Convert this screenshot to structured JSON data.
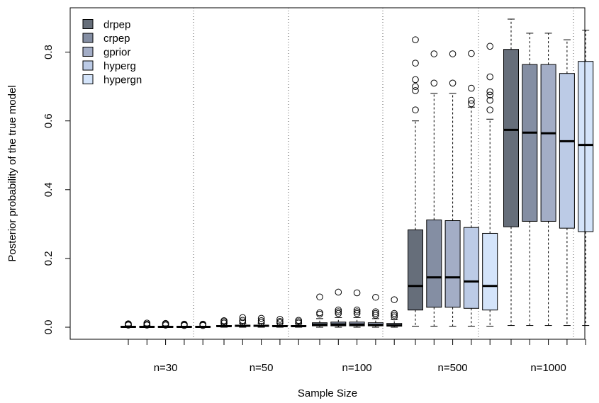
{
  "chart_data": {
    "type": "box",
    "xlabel": "Sample Size",
    "ylabel": "Posterior probability of the true model",
    "ylim": [
      0,
      0.9
    ],
    "yticks": [
      "0.0",
      "0.2",
      "0.4",
      "0.6",
      "0.8"
    ],
    "ytick_values": [
      0,
      0.2,
      0.4,
      0.6,
      0.8
    ],
    "groups": [
      "n=30",
      "n=50",
      "n=100",
      "n=500",
      "n=1000"
    ],
    "legend_position": "top-left",
    "series": [
      {
        "name": "drpep",
        "color": "#666e7a"
      },
      {
        "name": "crpep",
        "color": "#848ea3"
      },
      {
        "name": "gprior",
        "color": "#a3adc6"
      },
      {
        "name": "hyperg",
        "color": "#bccbe6"
      },
      {
        "name": "hypergn",
        "color": "#d4e4fa"
      }
    ],
    "boxes": [
      [
        {
          "min": 0,
          "q1": 0,
          "median": 0.001,
          "q3": 0.002,
          "max": 0.004,
          "outliers": [
            0.006,
            0.008,
            0.01
          ]
        },
        {
          "min": 0,
          "q1": 0,
          "median": 0.001,
          "q3": 0.002,
          "max": 0.004,
          "outliers": [
            0.006,
            0.009,
            0.012
          ]
        },
        {
          "min": 0,
          "q1": 0,
          "median": 0.001,
          "q3": 0.002,
          "max": 0.004,
          "outliers": [
            0.006,
            0.009,
            0.011
          ]
        },
        {
          "min": 0,
          "q1": 0,
          "median": 0.001,
          "q3": 0.002,
          "max": 0.003,
          "outliers": [
            0.005,
            0.007,
            0.009
          ]
        },
        {
          "min": 0,
          "q1": 0,
          "median": 0.001,
          "q3": 0.002,
          "max": 0.003,
          "outliers": [
            0.005,
            0.007,
            0.009
          ]
        }
      ],
      [
        {
          "min": 0,
          "q1": 0.002,
          "median": 0.003,
          "q3": 0.005,
          "max": 0.009,
          "outliers": [
            0.012,
            0.016,
            0.019
          ]
        },
        {
          "min": 0,
          "q1": 0.002,
          "median": 0.004,
          "q3": 0.006,
          "max": 0.011,
          "outliers": [
            0.015,
            0.02,
            0.028
          ]
        },
        {
          "min": 0,
          "q1": 0.002,
          "median": 0.004,
          "q3": 0.006,
          "max": 0.011,
          "outliers": [
            0.014,
            0.019,
            0.026
          ]
        },
        {
          "min": 0,
          "q1": 0.002,
          "median": 0.003,
          "q3": 0.005,
          "max": 0.01,
          "outliers": [
            0.013,
            0.017,
            0.023
          ]
        },
        {
          "min": 0,
          "q1": 0.002,
          "median": 0.003,
          "q3": 0.005,
          "max": 0.01,
          "outliers": [
            0.012,
            0.016,
            0.02
          ]
        }
      ],
      [
        {
          "min": 0,
          "q1": 0.004,
          "median": 0.007,
          "q3": 0.013,
          "max": 0.025,
          "outliers": [
            0.038,
            0.042,
            0.088
          ]
        },
        {
          "min": 0,
          "q1": 0.004,
          "median": 0.008,
          "q3": 0.015,
          "max": 0.028,
          "outliers": [
            0.04,
            0.045,
            0.05,
            0.102
          ]
        },
        {
          "min": 0,
          "q1": 0.004,
          "median": 0.008,
          "q3": 0.015,
          "max": 0.028,
          "outliers": [
            0.04,
            0.045,
            0.05,
            0.1
          ]
        },
        {
          "min": 0,
          "q1": 0.004,
          "median": 0.007,
          "q3": 0.013,
          "max": 0.025,
          "outliers": [
            0.035,
            0.04,
            0.045,
            0.087
          ]
        },
        {
          "min": 0,
          "q1": 0.003,
          "median": 0.006,
          "q3": 0.011,
          "max": 0.022,
          "outliers": [
            0.03,
            0.035,
            0.04,
            0.08
          ]
        }
      ],
      [
        {
          "min": 0.003,
          "q1": 0.05,
          "median": 0.12,
          "q3": 0.283,
          "max": 0.6,
          "outliers": [
            0.632,
            0.688,
            0.7,
            0.72,
            0.768,
            0.836
          ]
        },
        {
          "min": 0.003,
          "q1": 0.058,
          "median": 0.145,
          "q3": 0.312,
          "max": 0.68,
          "outliers": [
            0.71,
            0.795
          ]
        },
        {
          "min": 0.003,
          "q1": 0.058,
          "median": 0.145,
          "q3": 0.31,
          "max": 0.68,
          "outliers": [
            0.71,
            0.795
          ]
        },
        {
          "min": 0.003,
          "q1": 0.055,
          "median": 0.133,
          "q3": 0.29,
          "max": 0.64,
          "outliers": [
            0.65,
            0.66,
            0.695,
            0.796
          ]
        },
        {
          "min": 0.003,
          "q1": 0.05,
          "median": 0.12,
          "q3": 0.273,
          "max": 0.605,
          "outliers": [
            0.632,
            0.66,
            0.675,
            0.685,
            0.728,
            0.817
          ]
        }
      ],
      [
        {
          "min": 0.005,
          "q1": 0.292,
          "median": 0.574,
          "q3": 0.808,
          "max": 0.896,
          "outliers": []
        },
        {
          "min": 0.005,
          "q1": 0.308,
          "median": 0.566,
          "q3": 0.764,
          "max": 0.855,
          "outliers": []
        },
        {
          "min": 0.005,
          "q1": 0.308,
          "median": 0.564,
          "q3": 0.764,
          "max": 0.855,
          "outliers": []
        },
        {
          "min": 0.005,
          "q1": 0.288,
          "median": 0.541,
          "q3": 0.738,
          "max": 0.836,
          "outliers": []
        },
        {
          "min": 0.005,
          "q1": 0.278,
          "median": 0.53,
          "q3": 0.773,
          "max": 0.864,
          "outliers": []
        }
      ]
    ]
  }
}
